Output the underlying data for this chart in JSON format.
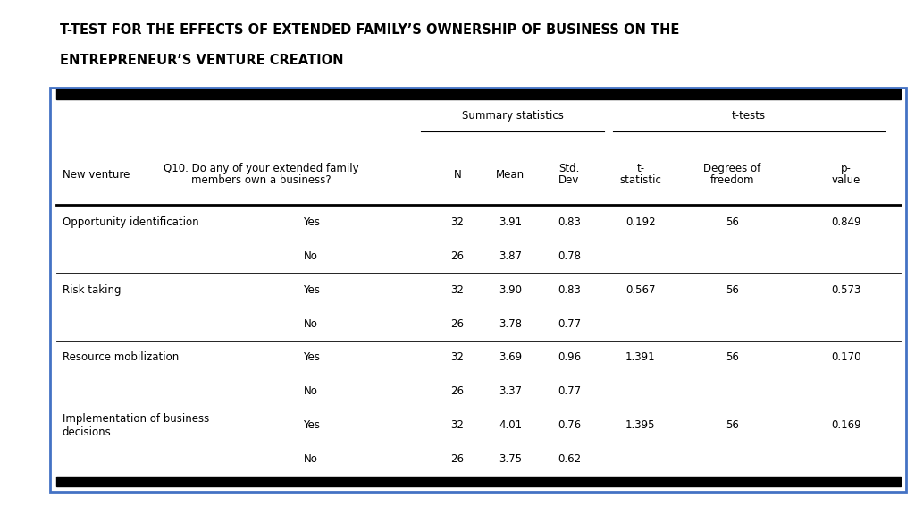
{
  "title_line1": "T-TEST FOR THE EFFECTS OF EXTENDED FAMILY’S OWNERSHIP OF BUSINESS ON THE",
  "title_line2": "ENTREPRENEUR’S VENTURE CREATION",
  "col_headers": {
    "new_venture": "New venture",
    "q10_line1": "Q10. Do any of your extended family",
    "q10_line2": "members own a business?",
    "n": "N",
    "mean": "Mean",
    "std_line1": "Std.",
    "std_line2": "Dev",
    "t_line1": "t-",
    "t_line2": "statistic",
    "deg_line1": "Degrees of",
    "deg_line2": "freedom",
    "p_line1": "p-",
    "p_line2": "value"
  },
  "group_headers": {
    "summary": "Summary statistics",
    "ttests": "t-tests"
  },
  "rows": [
    {
      "venture1": "Opportunity identification",
      "venture2": "",
      "yn": "Yes",
      "n": "32",
      "mean": "3.91",
      "std": "0.83",
      "t": "0.192",
      "df": "56",
      "p": "0.849"
    },
    {
      "venture1": "",
      "venture2": "",
      "yn": "No",
      "n": "26",
      "mean": "3.87",
      "std": "0.78",
      "t": "",
      "df": "",
      "p": ""
    },
    {
      "venture1": "Risk taking",
      "venture2": "",
      "yn": "Yes",
      "n": "32",
      "mean": "3.90",
      "std": "0.83",
      "t": "0.567",
      "df": "56",
      "p": "0.573"
    },
    {
      "venture1": "",
      "venture2": "",
      "yn": "No",
      "n": "26",
      "mean": "3.78",
      "std": "0.77",
      "t": "",
      "df": "",
      "p": ""
    },
    {
      "venture1": "Resource mobilization",
      "venture2": "",
      "yn": "Yes",
      "n": "32",
      "mean": "3.69",
      "std": "0.96",
      "t": "1.391",
      "df": "56",
      "p": "0.170"
    },
    {
      "venture1": "",
      "venture2": "",
      "yn": "No",
      "n": "26",
      "mean": "3.37",
      "std": "0.77",
      "t": "",
      "df": "",
      "p": ""
    },
    {
      "venture1": "Implementation of business",
      "venture2": "decisions",
      "yn": "Yes",
      "n": "32",
      "mean": "4.01",
      "std": "0.76",
      "t": "1.395",
      "df": "56",
      "p": "0.169"
    },
    {
      "venture1": "",
      "venture2": "",
      "yn": "No",
      "n": "26",
      "mean": "3.75",
      "std": "0.62",
      "t": "",
      "df": "",
      "p": ""
    }
  ],
  "border_color": "#4472C4",
  "background_color": "#ffffff",
  "title_color": "#000000",
  "text_color": "#000000",
  "title_fontsize": 10.5,
  "header_fontsize": 8.5,
  "data_fontsize": 8.5
}
